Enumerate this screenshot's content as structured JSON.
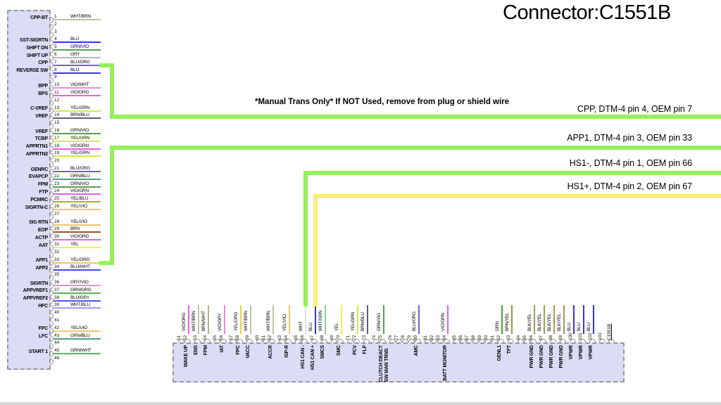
{
  "title": "Connector:C1551B",
  "note": "*Manual Trans Only* If NOT Used, remove from plug or shield wire",
  "colors": {
    "green_wire": "#96f05a",
    "yellow_wire": "#f8ee78",
    "block_fill": "#dcdcf6",
    "block_border": "#979797"
  },
  "wire_colors": {
    "WHT/BRN": "#c8bfa4",
    "BLU": "#3333ee",
    "GRN/VIO": "#55a055",
    "GRY": "#b9b9b9",
    "BLU/ORG": "#6f63d8",
    "VIO/WHT": "#f08ae8",
    "VIO/ORG": "#ee5fd0",
    "YEL/GRN": "#d8e84a",
    "BRN/BLU": "#5d5c7c",
    "VIO/GRN": "#e25fe2",
    "YEL/BLU": "#b0a84e",
    "YEL/VIO": "#f0c670",
    "BRN": "#8a5a2b",
    "YEL": "#f6ef4a",
    "YEL/ORG": "#f3c94f",
    "BLU/WHT": "#4848f0",
    "GRY/VIO": "#d49ac9",
    "GRN/ORG": "#57b457",
    "BLU/GRY": "#5555e8",
    "WHT/BLU": "#9b9bf2",
    "GRN/BLU": "#4aa284",
    "GRN/WHT": "#5cb85c",
    "WHT": "#deded8",
    "BRN/WHT": "#c0ae8a",
    "VIO/GRY": "#ec86e0",
    "WHT/GRN": "#8ed08e",
    "BRN/YEL": "#a8903c",
    "GRN": "#3da33d",
    "BLK/YEL": "#a49a55"
  },
  "left_connector": {
    "pins": [
      {
        "n": 1,
        "signal": "CPP-BT",
        "color": "WHT/BRN"
      },
      {
        "n": 2,
        "signal": "",
        "color": ""
      },
      {
        "n": 3,
        "signal": "",
        "color": ""
      },
      {
        "n": 4,
        "signal": "SST-SIGRTN",
        "color": "BLU"
      },
      {
        "n": 5,
        "signal": "SHIFT DN",
        "color": "GRN/VIO"
      },
      {
        "n": 6,
        "signal": "SHIFT UP",
        "color": "GRY"
      },
      {
        "n": 7,
        "signal": "CPP",
        "color": "BLU/ORG"
      },
      {
        "n": 8,
        "signal": "REVERSE SW",
        "color": "BLU"
      },
      {
        "n": 9,
        "signal": "",
        "color": ""
      },
      {
        "n": 10,
        "signal": "BPP",
        "color": "VIO/WHT"
      },
      {
        "n": 11,
        "signal": "BPS",
        "color": "VIO/ORG"
      },
      {
        "n": 12,
        "signal": "",
        "color": ""
      },
      {
        "n": 13,
        "signal": "C-VREF",
        "color": "YEL/GRN"
      },
      {
        "n": 14,
        "signal": "VREF",
        "color": "BRN/BLU"
      },
      {
        "n": 15,
        "signal": "",
        "color": ""
      },
      {
        "n": 16,
        "signal": "VREF",
        "color": "GRN/VIO"
      },
      {
        "n": 17,
        "signal": "TCBP",
        "color": "YEL/GRN"
      },
      {
        "n": 18,
        "signal": "APPRTN1",
        "color": "VIO/GRN"
      },
      {
        "n": 19,
        "signal": "APPRTN2",
        "color": "YEL/GRN"
      },
      {
        "n": 20,
        "signal": "",
        "color": ""
      },
      {
        "n": 21,
        "signal": "GENRC",
        "color": "BLU/ORG"
      },
      {
        "n": 22,
        "signal": "EVAPCP",
        "color": "GRN/BLU"
      },
      {
        "n": 23,
        "signal": "FPM",
        "color": "GRN/VIO"
      },
      {
        "n": 24,
        "signal": "FTP",
        "color": "VIO/GRN"
      },
      {
        "n": 25,
        "signal": "PCMRC",
        "color": "YEL/BLU"
      },
      {
        "n": 26,
        "signal": "SIGRTN-C",
        "color": "YEL/VIO"
      },
      {
        "n": 27,
        "signal": "",
        "color": ""
      },
      {
        "n": 28,
        "signal": "SIG RTN",
        "color": "YEL/VIO"
      },
      {
        "n": 29,
        "signal": "EOP",
        "color": "BRN"
      },
      {
        "n": 30,
        "signal": "ACTP",
        "color": "VIO/ORG"
      },
      {
        "n": 31,
        "signal": "AAT",
        "color": "YEL"
      },
      {
        "n": 32,
        "signal": "",
        "color": ""
      },
      {
        "n": 33,
        "signal": "APP1",
        "color": "YEL/ORG"
      },
      {
        "n": 34,
        "signal": "APP2",
        "color": "BLU/WHT"
      },
      {
        "n": 35,
        "signal": "",
        "color": ""
      },
      {
        "n": 36,
        "signal": "SIGRTN",
        "color": "GRY/VIO"
      },
      {
        "n": 37,
        "signal": "APPVREF1",
        "color": "GRN/ORG"
      },
      {
        "n": 38,
        "signal": "APPVREF2",
        "color": "BLU/GRY"
      },
      {
        "n": 39,
        "signal": "HFC",
        "color": "WHT/BLU"
      },
      {
        "n": 40,
        "signal": "",
        "color": ""
      },
      {
        "n": 41,
        "signal": "",
        "color": ""
      },
      {
        "n": 42,
        "signal": "FPC",
        "color": "YEL/VIO"
      },
      {
        "n": 43,
        "signal": "LFC",
        "color": "GRN/BLU"
      },
      {
        "n": 44,
        "signal": "",
        "color": ""
      },
      {
        "n": 45,
        "signal": "START 1",
        "color": "GRN/WHT"
      },
      {
        "n": 46,
        "signal": "",
        "color": ""
      }
    ]
  },
  "bottom_connector": {
    "name": "C1551B",
    "pins": [
      {
        "n": 51,
        "signal": "",
        "color": ""
      },
      {
        "n": 52,
        "signal": "WAKE UP",
        "color": "VIO/ORG"
      },
      {
        "n": 53,
        "signal": "ENS",
        "color": "WHT/BRN"
      },
      {
        "n": 54,
        "signal": "FPM",
        "color": "BRN/WHT"
      },
      {
        "n": 55,
        "signal": "",
        "color": ""
      },
      {
        "n": 56,
        "signal": "IAT",
        "color": "VIO/GRY"
      },
      {
        "n": 57,
        "signal": "",
        "color": ""
      },
      {
        "n": 58,
        "signal": "FPC",
        "color": "YEL/ORG"
      },
      {
        "n": 59,
        "signal": "VACC",
        "color": "WHT/BRN"
      },
      {
        "n": 60,
        "signal": "",
        "color": ""
      },
      {
        "n": 61,
        "signal": "",
        "color": ""
      },
      {
        "n": 62,
        "signal": "ACCR",
        "color": "WHT/BRN"
      },
      {
        "n": 63,
        "signal": "",
        "color": ""
      },
      {
        "n": 64,
        "signal": "ISP-R",
        "color": "YEL/VIO"
      },
      {
        "n": 65,
        "signal": "",
        "color": ""
      },
      {
        "n": 66,
        "signal": "HS1 CAN -",
        "color": "WHT"
      },
      {
        "n": 67,
        "signal": "HS1 CAN +",
        "color": "BLU"
      },
      {
        "n": 68,
        "signal": "SMCS",
        "color": "WHT/GRN"
      },
      {
        "n": 69,
        "signal": "",
        "color": ""
      },
      {
        "n": 70,
        "signal": "SMC",
        "color": "YEL"
      },
      {
        "n": 71,
        "signal": "",
        "color": ""
      },
      {
        "n": 72,
        "signal": "PCV",
        "color": "YEL/GRN"
      },
      {
        "n": 73,
        "signal": "FLP",
        "color": "BRN/BLU"
      },
      {
        "n": 74,
        "signal": "",
        "color": ""
      },
      {
        "n": 75,
        "signal": "CLUTCH DEACT\nSW MAN TRNS",
        "color": "GRN/VIO"
      },
      {
        "n": 76,
        "signal": "",
        "color": ""
      },
      {
        "n": 77,
        "signal": "",
        "color": ""
      },
      {
        "n": 78,
        "signal": "",
        "color": ""
      },
      {
        "n": 79,
        "signal": "",
        "color": ""
      },
      {
        "n": 80,
        "signal": "AMC",
        "color": "BLU/ORG"
      },
      {
        "n": 81,
        "signal": "",
        "color": ""
      },
      {
        "n": 82,
        "signal": "",
        "color": ""
      },
      {
        "n": 83,
        "signal": "",
        "color": ""
      },
      {
        "n": 84,
        "signal": "BATT MONITOR",
        "color": "VIO/GRN"
      },
      {
        "n": 85,
        "signal": "",
        "color": ""
      },
      {
        "n": 86,
        "signal": "",
        "color": ""
      },
      {
        "n": 87,
        "signal": "",
        "color": ""
      },
      {
        "n": 88,
        "signal": "",
        "color": ""
      },
      {
        "n": 89,
        "signal": "",
        "color": ""
      },
      {
        "n": 90,
        "signal": "",
        "color": ""
      },
      {
        "n": 91,
        "signal": "",
        "color": ""
      },
      {
        "n": 92,
        "signal": "GENL1",
        "color": "GRN"
      },
      {
        "n": 93,
        "signal": "TFT",
        "color": "BRN/YEL"
      },
      {
        "n": 94,
        "signal": "",
        "color": ""
      },
      {
        "n": 95,
        "signal": "",
        "color": ""
      },
      {
        "n": 96,
        "signal": "PWR GND",
        "color": "BLK/YEL"
      },
      {
        "n": 97,
        "signal": "PWR GND",
        "color": "BLK/YEL"
      },
      {
        "n": 98,
        "signal": "PWR GND",
        "color": "BLK/YEL"
      },
      {
        "n": 99,
        "signal": "PWR GND",
        "color": "BLK/YEL"
      },
      {
        "n": 100,
        "signal": "VPWR",
        "color": "BLU"
      },
      {
        "n": 101,
        "signal": "VPWR",
        "color": "BLU"
      },
      {
        "n": 102,
        "signal": "VPWR",
        "color": "BLU"
      },
      {
        "n": 103,
        "signal": "",
        "color": ""
      }
    ]
  },
  "routes": [
    {
      "id": "cpp",
      "label": "CPP, DTM-4 pin 4, OEM pin 7",
      "wire": "green"
    },
    {
      "id": "app1",
      "label": "APP1, DTM-4 pin 3, OEM pin 33",
      "wire": "green"
    },
    {
      "id": "hs1m",
      "label": "HS1-, DTM-4 pin 1, OEM pin 66",
      "wire": "green"
    },
    {
      "id": "hs1p",
      "label": "HS1+, DTM-4 pin 2, OEM pin 67",
      "wire": "yellow"
    }
  ]
}
